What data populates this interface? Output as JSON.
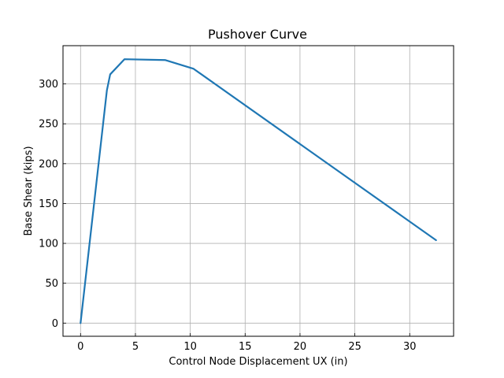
{
  "chart_data": {
    "type": "line",
    "title": "Pushover Curve",
    "xlabel": "Control Node Displacement UX (in)",
    "ylabel": "Base Shear (kips)",
    "xlim": [
      -1.6,
      34.0
    ],
    "ylim": [
      -16.5,
      348
    ],
    "xticks": [
      0,
      5,
      10,
      15,
      20,
      25,
      30
    ],
    "yticks": [
      0,
      50,
      100,
      150,
      200,
      250,
      300
    ],
    "grid": true,
    "series": [
      {
        "color": "#1f77b4",
        "x": [
          0,
          2.4,
          2.7,
          4.0,
          7.7,
          10.3,
          32.4
        ],
        "y": [
          0,
          292,
          312,
          331,
          330,
          319,
          104
        ]
      }
    ]
  }
}
